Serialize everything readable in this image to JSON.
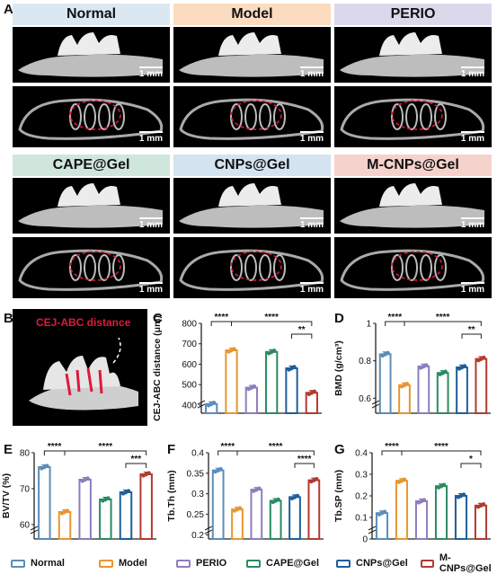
{
  "panels": {
    "A": "A",
    "B": "B",
    "C": "C",
    "D": "D",
    "E": "E",
    "F": "F",
    "G": "G"
  },
  "groups": [
    {
      "name": "Normal",
      "color": "#5b8db8",
      "bg": "#dce8f1"
    },
    {
      "name": "Model",
      "color": "#e8962f",
      "bg": "#fbdcc0"
    },
    {
      "name": "PERIO",
      "color": "#8d7dbf",
      "bg": "#dcd8ec"
    },
    {
      "name": "CAPE@Gel",
      "color": "#2a8b5f",
      "bg": "#cfe6dc"
    },
    {
      "name": "CNPs@Gel",
      "color": "#1d5e9a",
      "bg": "#d4e3f0"
    },
    {
      "name": "M-CNPs@Gel",
      "color": "#b33a2f",
      "bg": "#f6d2cc"
    }
  ],
  "scale_label": "1 mm",
  "panel_b_label": "CEJ-ABC distance",
  "chart_data": [
    {
      "id": "C",
      "type": "bar",
      "categories": [
        "Normal",
        "Model",
        "PERIO",
        "CAPE@Gel",
        "CNPs@Gel",
        "M-CNPs@Gel"
      ],
      "values": [
        405,
        668,
        485,
        660,
        580,
        460
      ],
      "ylabel": "CEJ-ABC distance (μm)",
      "ylim": [
        360,
        800
      ],
      "yticks": [
        400,
        500,
        600,
        700,
        800
      ],
      "sig": [
        {
          "from": 0,
          "to": 1,
          "label": "****",
          "level": 1
        },
        {
          "from": 1,
          "to": 5,
          "label": "****",
          "level": 1
        },
        {
          "from": 4,
          "to": 5,
          "label": "**",
          "level": 0
        }
      ]
    },
    {
      "id": "D",
      "type": "bar",
      "categories": [
        "Normal",
        "Model",
        "PERIO",
        "CAPE@Gel",
        "CNPs@Gel",
        "M-CNPs@Gel"
      ],
      "values": [
        0.835,
        0.67,
        0.77,
        0.735,
        0.765,
        0.81
      ],
      "ylabel": "BMD (g/cm³)",
      "ylim": [
        0.52,
        1.0
      ],
      "yticks": [
        0.6,
        0.8,
        1.0
      ],
      "sig": [
        {
          "from": 0,
          "to": 1,
          "label": "****",
          "level": 1
        },
        {
          "from": 1,
          "to": 5,
          "label": "****",
          "level": 1
        },
        {
          "from": 4,
          "to": 5,
          "label": "**",
          "level": 0
        }
      ]
    },
    {
      "id": "E",
      "type": "bar",
      "categories": [
        "Normal",
        "Model",
        "PERIO",
        "CAPE@Gel",
        "CNPs@Gel",
        "M-CNPs@Gel"
      ],
      "values": [
        76,
        63.5,
        72.5,
        67,
        69,
        74
      ],
      "ylabel": "BV/TV (%)",
      "ylim": [
        56,
        80
      ],
      "yticks": [
        60,
        70,
        80
      ],
      "sig": [
        {
          "from": 0,
          "to": 1,
          "label": "****",
          "level": 1
        },
        {
          "from": 1,
          "to": 5,
          "label": "****",
          "level": 1
        },
        {
          "from": 4,
          "to": 5,
          "label": "***",
          "level": 0
        }
      ]
    },
    {
      "id": "F",
      "type": "bar",
      "categories": [
        "Normal",
        "Model",
        "PERIO",
        "CAPE@Gel",
        "CNPs@Gel",
        "M-CNPs@Gel"
      ],
      "values": [
        0.357,
        0.262,
        0.31,
        0.283,
        0.292,
        0.333
      ],
      "ylabel": "Tb.Th (mm)",
      "ylim": [
        0.19,
        0.4
      ],
      "yticks": [
        0.2,
        0.25,
        0.3,
        0.35,
        0.4
      ],
      "sig": [
        {
          "from": 0,
          "to": 1,
          "label": "****",
          "level": 1
        },
        {
          "from": 1,
          "to": 5,
          "label": "****",
          "level": 1
        },
        {
          "from": 4,
          "to": 5,
          "label": "****",
          "level": 0
        }
      ]
    },
    {
      "id": "G",
      "type": "bar",
      "categories": [
        "Normal",
        "Model",
        "PERIO",
        "CAPE@Gel",
        "CNPs@Gel",
        "M-CNPs@Gel"
      ],
      "values": [
        0.12,
        0.27,
        0.175,
        0.245,
        0.2,
        0.155
      ],
      "ylabel": "Tb.SP (mm)",
      "ylim": [
        0.0,
        0.4
      ],
      "yticks": [
        0.0,
        0.1,
        0.2,
        0.3,
        0.4
      ],
      "sig": [
        {
          "from": 0,
          "to": 1,
          "label": "****",
          "level": 1
        },
        {
          "from": 1,
          "to": 5,
          "label": "****",
          "level": 1
        },
        {
          "from": 4,
          "to": 5,
          "label": "*",
          "level": 0
        }
      ]
    }
  ]
}
